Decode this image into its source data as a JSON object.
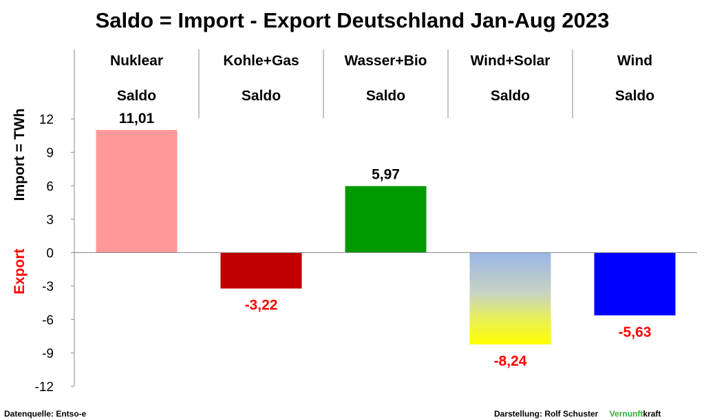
{
  "chart_data": {
    "type": "bar",
    "title": "Saldo = Import - Export Deutschland Jan-Aug 2023",
    "ylabel_positive": "Import =  TWh",
    "ylabel_negative": "Export",
    "ylim": [
      -12,
      12
    ],
    "yticks": [
      12,
      9,
      6,
      3,
      0,
      -3,
      -6,
      -9,
      -12
    ],
    "grid": false,
    "categories": [
      {
        "name": "Nuklear",
        "sub": "Saldo"
      },
      {
        "name": "Kohle+Gas",
        "sub": "Saldo"
      },
      {
        "name": "Wasser+Bio",
        "sub": "Saldo"
      },
      {
        "name": "Wind+Solar",
        "sub": "Saldo"
      },
      {
        "name": "Wind",
        "sub": "Saldo"
      }
    ],
    "values": [
      11.01,
      -3.22,
      5.97,
      -8.24,
      -5.63
    ],
    "value_labels": [
      "11,01",
      "-3,22",
      "5,97",
      "-8,24",
      "-5,63"
    ],
    "bar_colors": [
      "#ff9999",
      "#c00000",
      "#009900",
      "gradient-blue-yellow",
      "#0000ff"
    ],
    "label_colors": {
      "positive": "#000000",
      "negative": "#ff0000"
    }
  },
  "footer": {
    "source": "Datenquelle: Entso-e",
    "author": "Darstellung:  Rolf Schuster",
    "brand_part1": "Vernunft",
    "brand_part2": "kraft",
    "brand_color": "#33aa33"
  }
}
